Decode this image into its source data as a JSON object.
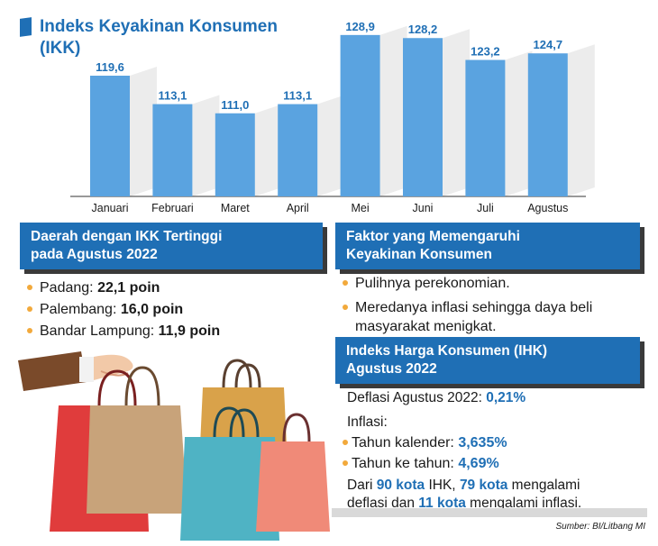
{
  "title": "Indeks Keyakinan Konsumen",
  "title_line2": "(IKK)",
  "chart_data": {
    "type": "bar",
    "categories": [
      "Januari",
      "Februari",
      "Maret",
      "April",
      "Mei",
      "Juni",
      "Juli",
      "Agustus"
    ],
    "values": [
      119.6,
      113.1,
      111.0,
      113.1,
      128.9,
      128.2,
      123.2,
      124.7
    ],
    "value_labels": [
      "119,6",
      "113,1",
      "111,0",
      "113,1",
      "128,9",
      "128,2",
      "123,2",
      "124,7"
    ],
    "title": "Indeks Keyakinan Konsumen (IKK)",
    "xlabel": "",
    "ylabel": "",
    "grid": false,
    "bar_color": "#5aa3e0",
    "label_color": "#1f6fb5"
  },
  "left_box": {
    "header_line1": "Daerah dengan IKK Tertinggi",
    "header_line2": "pada Agustus 2022",
    "items": [
      {
        "city": "Padang:",
        "value": "22,1 poin"
      },
      {
        "city": "Palembang:",
        "value": "16,0 poin"
      },
      {
        "city": "Bandar Lampung:",
        "value": "11,9 poin"
      }
    ]
  },
  "right_box": {
    "header_line1": "Faktor yang Memengaruhi",
    "header_line2": "Keyakinan Konsumen",
    "items": [
      "Pulihnya perekonomian.",
      "Meredanya inflasi sehingga daya beli masyarakat menigkat."
    ]
  },
  "ihk_box": {
    "header_line1": "Indeks Harga Konsumen (IHK)",
    "header_line2": "Agustus 2022",
    "deflasi_label": "Deflasi Agustus 2022:",
    "deflasi_value": "0,21%",
    "inflasi_label": "Inflasi:",
    "inflasi_items": [
      {
        "label": "Tahun kalender:",
        "value": "3,635%"
      },
      {
        "label": "Tahun ke tahun:",
        "value": "4,69%"
      }
    ],
    "summary_prefix": "Dari",
    "summary_n90": "90 kota",
    "summary_mid1": "IHK,",
    "summary_n79": "79 kota",
    "summary_mid2": "mengalami",
    "summary_line2_start": "deflasi dan",
    "summary_n11": "11 kota",
    "summary_end": "mengalami inflasi."
  },
  "source": "Sumber: BI/Litbang MI",
  "colors": {
    "brand_blue": "#1f6fb5",
    "bar": "#5aa3e0",
    "bullet": "#f2a93b"
  }
}
